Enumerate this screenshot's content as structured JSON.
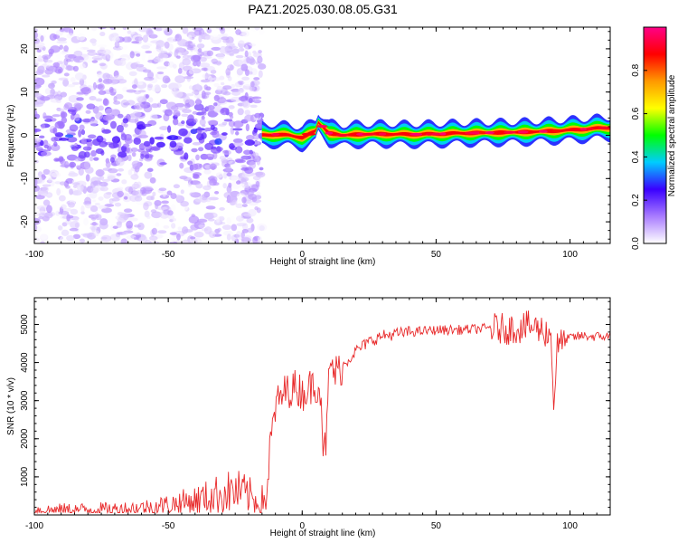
{
  "title": "PAZ1.2025.030.08.05.G31",
  "colors": {
    "line": "#e8292a",
    "frame": "#000000"
  },
  "chart_data": [
    {
      "type": "heatmap",
      "xlabel": "Height of straight line (km)",
      "ylabel": "Frequency (Hz)",
      "xlim": [
        -100,
        115
      ],
      "ylim": [
        -25,
        25
      ],
      "xticks": [
        -100,
        -50,
        0,
        50,
        100
      ],
      "yticks": [
        -20,
        -10,
        0,
        10,
        20
      ],
      "colorbar": {
        "label": "Normalized spectral amplitude",
        "range": [
          0,
          1
        ],
        "ticks": [
          "0.0",
          "0.2",
          "0.4",
          "0.6",
          "0.8"
        ],
        "tick_values": [
          0.0,
          0.2,
          0.4,
          0.6,
          0.8
        ],
        "colormap": "rainbow",
        "stops": [
          "#ffffff",
          "#a97cff",
          "#3a00ff",
          "#00ccff",
          "#00ff00",
          "#ffff00",
          "#ff9900",
          "#ff0000",
          "#ff0088"
        ]
      },
      "signal_track": {
        "x": [
          -15,
          -10,
          -5,
          0,
          5,
          6,
          10,
          15,
          20,
          30,
          40,
          50,
          60,
          70,
          80,
          90,
          100,
          110,
          115
        ],
        "y": [
          0,
          0.2,
          0,
          -0.5,
          1.0,
          3.0,
          0.5,
          0,
          0.2,
          0.3,
          0.2,
          0.3,
          0.5,
          0.6,
          0.7,
          0.9,
          1.2,
          1.6,
          1.8
        ]
      },
      "noise_region_x": [
        -100,
        -15
      ]
    },
    {
      "type": "line",
      "xlabel": "Height of straight line (km)",
      "ylabel": "SNR (10 * v/v)",
      "xlim": [
        -100,
        115
      ],
      "ylim": [
        0,
        5700
      ],
      "xticks": [
        -100,
        -50,
        0,
        50,
        100
      ],
      "yticks": [
        1000,
        2000,
        3000,
        4000,
        5000
      ],
      "series": [
        {
          "x": [
            -100,
            -90,
            -80,
            -70,
            -60,
            -55,
            -50,
            -45,
            -40,
            -35,
            -30,
            -25,
            -20,
            -17,
            -15,
            -13,
            -12,
            -10,
            -8,
            -5,
            -2,
            0,
            2,
            5,
            7,
            8,
            9,
            10,
            11,
            12,
            15,
            20,
            25,
            30,
            40,
            50,
            60,
            70,
            75,
            80,
            85,
            90,
            93,
            94,
            95,
            100,
            105,
            110,
            115
          ],
          "y": [
            120,
            130,
            140,
            150,
            180,
            220,
            260,
            320,
            380,
            460,
            560,
            620,
            520,
            350,
            300,
            600,
            1800,
            2800,
            3100,
            3300,
            3350,
            3200,
            3300,
            3450,
            3300,
            1500,
            2000,
            3600,
            4000,
            3700,
            3900,
            4300,
            4550,
            4700,
            4800,
            4850,
            4860,
            4900,
            4880,
            4900,
            4950,
            4850,
            4700,
            2700,
            4400,
            4650,
            4700,
            4680,
            4690
          ]
        }
      ]
    }
  ]
}
